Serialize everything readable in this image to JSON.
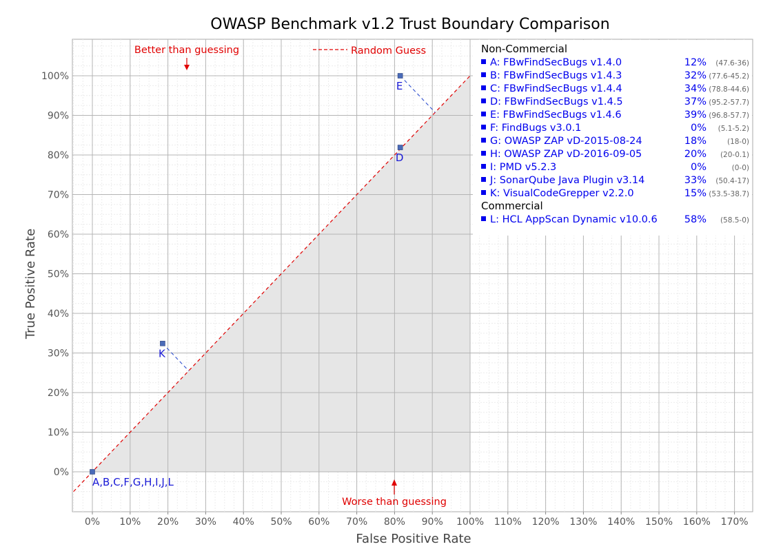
{
  "chart_data": {
    "type": "scatter",
    "title": "OWASP Benchmark v1.2 Trust Boundary Comparison",
    "xlabel": "False Positive Rate",
    "ylabel": "True Positive Rate",
    "xlim": [
      0,
      175
    ],
    "ylim": [
      -5,
      110
    ],
    "x_ticks": [
      "0%",
      "10%",
      "20%",
      "30%",
      "40%",
      "50%",
      "60%",
      "70%",
      "80%",
      "90%",
      "100%",
      "110%",
      "120%",
      "130%",
      "140%",
      "150%",
      "160%",
      "170%"
    ],
    "y_ticks": [
      "0%",
      "10%",
      "20%",
      "30%",
      "40%",
      "50%",
      "60%",
      "70%",
      "80%",
      "90%",
      "100%"
    ],
    "grid": true,
    "reference_line": {
      "label": "Random Guess",
      "from": [
        0,
        0
      ],
      "to": [
        100,
        100
      ],
      "color": "#e00000"
    },
    "shaded_region": "below the Random Guess line",
    "annotations": {
      "better": "Better than guessing",
      "worse": "Worse than guessing"
    },
    "points": [
      {
        "label": "A,B,C,F,G,H,I,J,L",
        "x": 0,
        "y": 0
      },
      {
        "label": "K",
        "x": 18.6,
        "y": 32.4
      },
      {
        "label": "D",
        "x": 81.5,
        "y": 81.9
      },
      {
        "label": "E",
        "x": 81.5,
        "y": 100
      }
    ],
    "legend": {
      "position": "right",
      "groups": [
        {
          "heading": "Non-Commercial",
          "items": [
            {
              "name": "A: FBwFindSecBugs v1.4.0",
              "score": "12%",
              "range": "(47.6-36)"
            },
            {
              "name": "B: FBwFindSecBugs v1.4.3",
              "score": "32%",
              "range": "(77.6-45.2)"
            },
            {
              "name": "C: FBwFindSecBugs v1.4.4",
              "score": "34%",
              "range": "(78.8-44.6)"
            },
            {
              "name": "D: FBwFindSecBugs v1.4.5",
              "score": "37%",
              "range": "(95.2-57.7)"
            },
            {
              "name": "E: FBwFindSecBugs v1.4.6",
              "score": "39%",
              "range": "(96.8-57.7)"
            },
            {
              "name": "F: FindBugs v3.0.1",
              "score": "0%",
              "range": "(5.1-5.2)"
            },
            {
              "name": "G: OWASP ZAP vD-2015-08-24",
              "score": "18%",
              "range": "(18-0)"
            },
            {
              "name": "H: OWASP ZAP vD-2016-09-05",
              "score": "20%",
              "range": "(20-0.1)"
            },
            {
              "name": "I:  PMD v5.2.3",
              "score": "0%",
              "range": "(0-0)"
            },
            {
              "name": "J:  SonarQube Java Plugin v3.14",
              "score": "33%",
              "range": "(50.4-17)"
            },
            {
              "name": "K: VisualCodeGrepper v2.2.0",
              "score": "15%",
              "range": "(53.5-38.7)"
            }
          ]
        },
        {
          "heading": "Commercial",
          "items": [
            {
              "name": "L: HCL AppScan Dynamic v10.0.6",
              "score": "58%",
              "range": "(58.5-0)"
            }
          ]
        }
      ]
    },
    "colors": {
      "point": "#4a6bb8",
      "point_label": "#1a1ad6",
      "reference": "#e00000",
      "shade": "#e6e6e6"
    }
  }
}
